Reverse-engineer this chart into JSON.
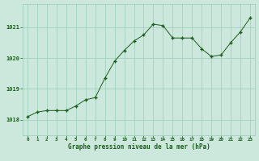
{
  "x": [
    0,
    1,
    2,
    3,
    4,
    5,
    6,
    7,
    8,
    9,
    10,
    11,
    12,
    13,
    14,
    15,
    16,
    17,
    18,
    19,
    20,
    21,
    22,
    23
  ],
  "y": [
    1018.1,
    1018.25,
    1018.3,
    1018.3,
    1018.3,
    1018.45,
    1018.65,
    1018.72,
    1019.35,
    1019.9,
    1020.25,
    1020.55,
    1020.75,
    1021.1,
    1021.05,
    1020.65,
    1020.65,
    1020.65,
    1020.3,
    1020.05,
    1020.1,
    1020.5,
    1020.85,
    1021.3
  ],
  "line_color": "#1a5c1a",
  "marker_color": "#1a5c1a",
  "bg_color": "#cce8dd",
  "grid_color": "#99ccbb",
  "xlabel": "Graphe pression niveau de la mer (hPa)",
  "xlabel_color": "#1a5c1a",
  "tick_color": "#1a5c1a",
  "ylim": [
    1017.5,
    1021.75
  ],
  "yticks": [
    1018,
    1019,
    1020,
    1021
  ],
  "xlim": [
    -0.5,
    23.5
  ],
  "xticks": [
    0,
    1,
    2,
    3,
    4,
    5,
    6,
    7,
    8,
    9,
    10,
    11,
    12,
    13,
    14,
    15,
    16,
    17,
    18,
    19,
    20,
    21,
    22,
    23
  ]
}
